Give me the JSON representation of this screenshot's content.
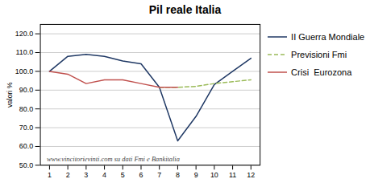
{
  "chart_data": {
    "type": "line",
    "title": "Pil reale Italia",
    "ylabel": "valori %",
    "x": [
      1,
      2,
      3,
      4,
      5,
      6,
      7,
      8,
      9,
      10,
      11,
      12
    ],
    "series": [
      {
        "name": "II Guerra Mondiale",
        "color": "#1F3864",
        "line_style": "solid",
        "values": [
          100.0,
          108.0,
          109.0,
          108.0,
          105.5,
          104.0,
          91.5,
          63.0,
          76.0,
          93.0,
          100.0,
          107.0
        ]
      },
      {
        "name": "Previsioni Fmi",
        "color": "#9BBB59",
        "line_style": "dashed",
        "values": [
          null,
          null,
          null,
          null,
          null,
          null,
          91.5,
          91.5,
          92.0,
          93.5,
          94.5,
          95.5
        ]
      },
      {
        "name": "Crisi  Eurozona",
        "color": "#C0504D",
        "line_style": "solid",
        "values": [
          100.0,
          98.5,
          93.5,
          95.5,
          95.5,
          93.5,
          91.5,
          91.5,
          null,
          null,
          null,
          null
        ]
      }
    ],
    "xlim": [
      0.5,
      12.5
    ],
    "xticks": [
      1,
      2,
      3,
      4,
      5,
      6,
      7,
      8,
      9,
      10,
      11,
      12
    ],
    "ylim": [
      50,
      125
    ],
    "yticks": [
      {
        "value": 50,
        "label": "50.0"
      },
      {
        "value": 60,
        "label": "60.0"
      },
      {
        "value": 70,
        "label": "70.0"
      },
      {
        "value": 80,
        "label": "80.0"
      },
      {
        "value": 90,
        "label": "90.0"
      },
      {
        "value": 100,
        "label": "100.0"
      },
      {
        "value": 110,
        "label": "110.0"
      },
      {
        "value": 120,
        "label": "120.0"
      }
    ],
    "grid": true,
    "legend": "right",
    "annotations": [
      "www.vincitorievinti.com su dati Fmi e Bankitalia"
    ]
  }
}
